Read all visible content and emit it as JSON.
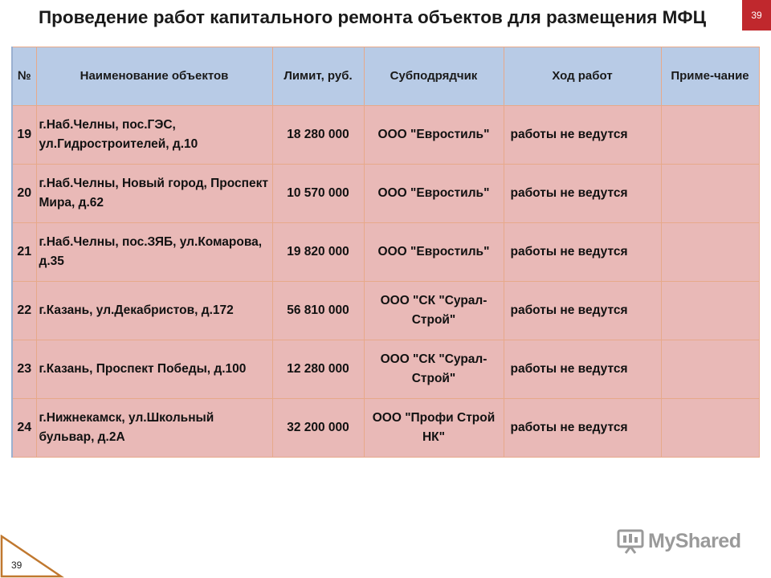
{
  "title": "Проведение работ капитального ремонта объектов для размещения МФЦ",
  "slide_number": "39",
  "table": {
    "headers": {
      "num": "№",
      "name": "Наименование объектов",
      "limit": "Лимит, руб.",
      "subcontractor": "Субподрядчик",
      "progress": "Ход работ",
      "note": "Приме-чание"
    },
    "rows": [
      {
        "num": "19",
        "name": "г.Наб.Челны, пос.ГЭС, ул.Гидростроителей, д.10",
        "limit": "18 280 000",
        "subcontractor": "ООО \"Евростиль\"",
        "progress": "работы не ведутся",
        "note": ""
      },
      {
        "num": "20",
        "name": "г.Наб.Челны, Новый город, Проспект Мира, д.62",
        "limit": "10 570 000",
        "subcontractor": "ООО \"Евростиль\"",
        "progress": "работы не ведутся",
        "note": ""
      },
      {
        "num": "21",
        "name": "г.Наб.Челны, пос.ЗЯБ, ул.Комарова, д.35",
        "limit": "19 820 000",
        "subcontractor": "ООО \"Евростиль\"",
        "progress": "работы не ведутся",
        "note": ""
      },
      {
        "num": "22",
        "name": "г.Казань, ул.Декабристов, д.172",
        "limit": "56 810 000",
        "subcontractor": "ООО \"СК \"Сурал-Строй\"",
        "progress": "работы не ведутся",
        "note": ""
      },
      {
        "num": "23",
        "name": "г.Казань, Проспект Победы, д.100",
        "limit": "12 280 000",
        "subcontractor": "ООО \"СК \"Сурал-Строй\"",
        "progress": "работы не ведутся",
        "note": ""
      },
      {
        "num": "24",
        "name": "г.Нижнекамск, ул.Школьный бульвар, д.2А",
        "limit": "32 200 000",
        "subcontractor": "ООО \"Профи Строй НК\"",
        "progress": "работы не ведутся",
        "note": ""
      }
    ]
  },
  "footer": {
    "page_number": "39",
    "watermark": "MyShared"
  },
  "colors": {
    "header_bg": "#b8cbe6",
    "row_bg": "#e9b9b7",
    "border": "#e7a98a",
    "badge": "#c0282d"
  }
}
